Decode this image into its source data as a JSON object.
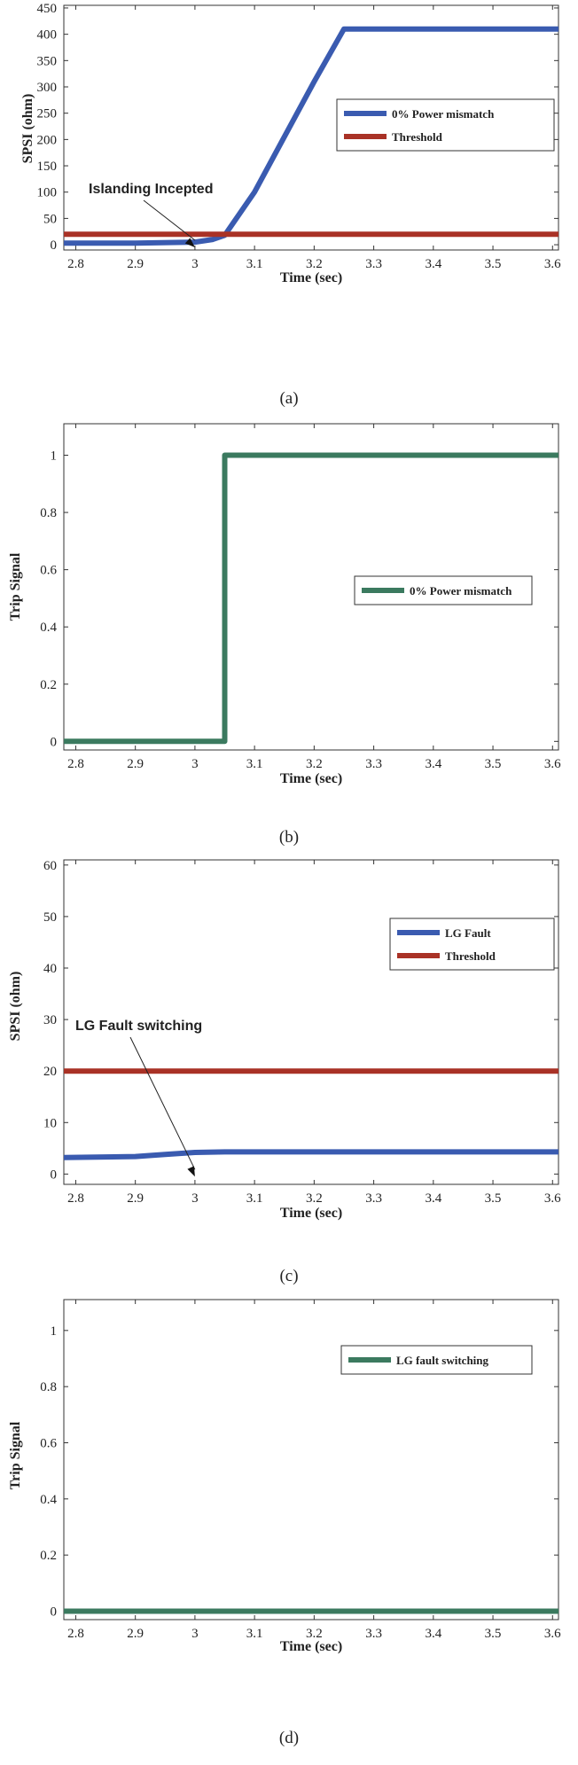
{
  "chart_data": [
    {
      "caption": "(a)",
      "type": "line",
      "ylabel": "SPSI (ohm)",
      "xlabel": "Time (sec)",
      "xlim": [
        2.78,
        3.61
      ],
      "ylim": [
        -10,
        455
      ],
      "xticks": [
        2.8,
        2.9,
        3.0,
        3.1,
        3.2,
        3.3,
        3.4,
        3.5,
        3.6
      ],
      "xtick_labels": [
        "2.8",
        "2.9",
        "3",
        "3.1",
        "3.2",
        "3.3",
        "3.4",
        "3.5",
        "3.6"
      ],
      "yticks": [
        0,
        50,
        100,
        150,
        200,
        250,
        300,
        350,
        400,
        450
      ],
      "ytick_labels": [
        "0",
        "50",
        "100",
        "150",
        "200",
        "250",
        "300",
        "350",
        "400",
        "450"
      ],
      "legend_position": "right",
      "series": [
        {
          "name": "0% Power mismatch",
          "color": "#3a5bb0",
          "x": [
            2.78,
            2.9,
            3.0,
            3.03,
            3.05,
            3.1,
            3.15,
            3.2,
            3.25,
            3.3,
            3.4,
            3.5,
            3.61
          ],
          "y": [
            3,
            3,
            5,
            10,
            18,
            100,
            205,
            310,
            410,
            410,
            410,
            410,
            410
          ]
        },
        {
          "name": "Threshold",
          "color": "#a93226",
          "x": [
            2.78,
            3.61
          ],
          "y": [
            20,
            20
          ]
        }
      ],
      "annotation": {
        "text": "Islanding Incepted",
        "target_x": 3.0,
        "target_y": -5
      }
    },
    {
      "caption": "(b)",
      "type": "line",
      "ylabel": "Trip Signal",
      "xlabel": "Time (sec)",
      "xlim": [
        2.78,
        3.61
      ],
      "ylim": [
        -0.03,
        1.11
      ],
      "xticks": [
        2.8,
        2.9,
        3.0,
        3.1,
        3.2,
        3.3,
        3.4,
        3.5,
        3.6
      ],
      "xtick_labels": [
        "2.8",
        "2.9",
        "3",
        "3.1",
        "3.2",
        "3.3",
        "3.4",
        "3.5",
        "3.6"
      ],
      "yticks": [
        0,
        0.2,
        0.4,
        0.6,
        0.8,
        1
      ],
      "ytick_labels": [
        "0",
        "0.2",
        "0.4",
        "0.6",
        "0.8",
        "1"
      ],
      "legend_position": "right",
      "series": [
        {
          "name": "0% Power mismatch",
          "color": "#3b7a5f",
          "x": [
            2.78,
            3.05,
            3.05,
            3.61
          ],
          "y": [
            0,
            0,
            1,
            1
          ]
        }
      ]
    },
    {
      "caption": "(c)",
      "type": "line",
      "ylabel": "SPSI (ohm)",
      "xlabel": "Time (sec)",
      "xlim": [
        2.78,
        3.61
      ],
      "ylim": [
        -2,
        61
      ],
      "xticks": [
        2.8,
        2.9,
        3.0,
        3.1,
        3.2,
        3.3,
        3.4,
        3.5,
        3.6
      ],
      "xtick_labels": [
        "2.8",
        "2.9",
        "3",
        "3.1",
        "3.2",
        "3.3",
        "3.4",
        "3.5",
        "3.6"
      ],
      "yticks": [
        0,
        10,
        20,
        30,
        40,
        50,
        60
      ],
      "ytick_labels": [
        "0",
        "10",
        "20",
        "30",
        "40",
        "50",
        "60"
      ],
      "legend_position": "top-right",
      "series": [
        {
          "name": "LG Fault",
          "color": "#3a5bb0",
          "x": [
            2.78,
            2.9,
            2.95,
            3.0,
            3.05,
            3.1,
            3.2,
            3.3,
            3.4,
            3.5,
            3.61
          ],
          "y": [
            3.2,
            3.4,
            3.8,
            4.2,
            4.3,
            4.3,
            4.3,
            4.3,
            4.3,
            4.3,
            4.3
          ]
        },
        {
          "name": "Threshold",
          "color": "#a93226",
          "x": [
            2.78,
            3.61
          ],
          "y": [
            20,
            20
          ]
        }
      ],
      "annotation": {
        "text": "LG Fault switching",
        "target_x": 3.0,
        "target_y": -0.5
      }
    },
    {
      "caption": "(d)",
      "type": "line",
      "ylabel": "Trip Signal",
      "xlabel": "Time (sec)",
      "xlim": [
        2.78,
        3.61
      ],
      "ylim": [
        -0.03,
        1.11
      ],
      "xticks": [
        2.8,
        2.9,
        3.0,
        3.1,
        3.2,
        3.3,
        3.4,
        3.5,
        3.6
      ],
      "xtick_labels": [
        "2.8",
        "2.9",
        "3",
        "3.1",
        "3.2",
        "3.3",
        "3.4",
        "3.5",
        "3.6"
      ],
      "yticks": [
        0,
        0.2,
        0.4,
        0.6,
        0.8,
        1
      ],
      "ytick_labels": [
        "0",
        "0.2",
        "0.4",
        "0.6",
        "0.8",
        "1"
      ],
      "legend_position": "top-right",
      "series": [
        {
          "name": "LG fault switching",
          "color": "#3b7a5f",
          "x": [
            2.78,
            3.61
          ],
          "y": [
            0,
            0
          ]
        }
      ]
    }
  ]
}
